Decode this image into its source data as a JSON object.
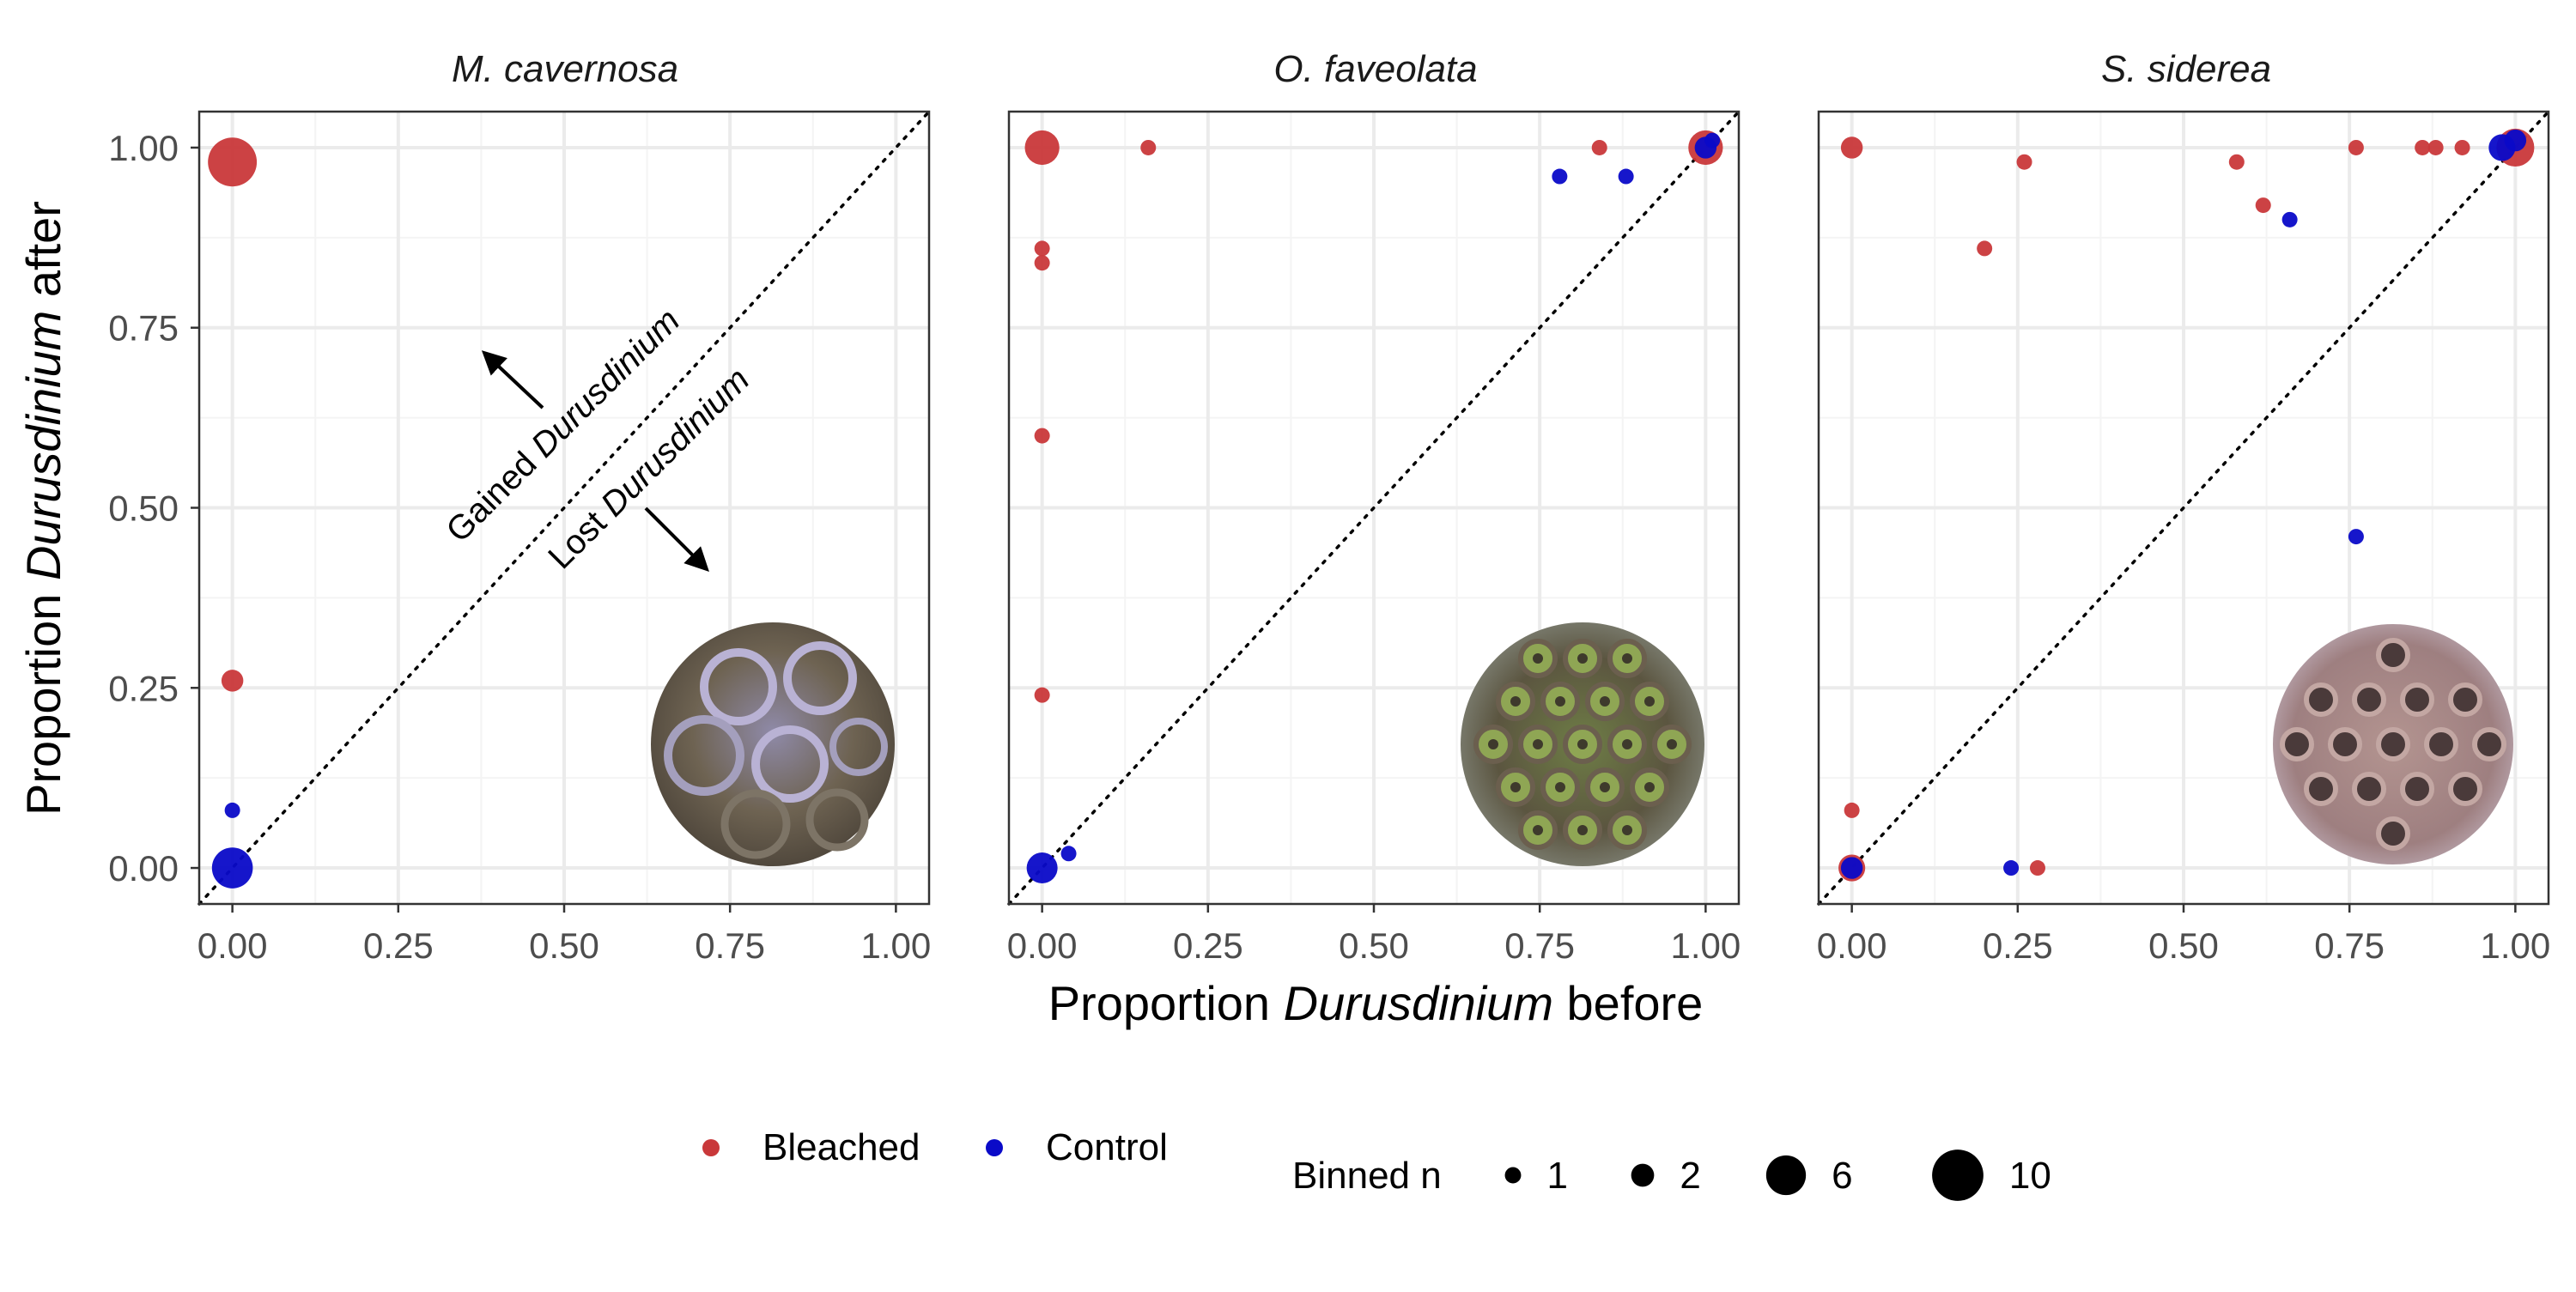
{
  "chart_data": [
    {
      "type": "scatter",
      "title": "M. cavernosa",
      "xlim": [
        -0.05,
        1.05
      ],
      "ylim": [
        -0.05,
        1.05
      ],
      "x_ticks": [
        "0.00",
        "0.25",
        "0.50",
        "0.75",
        "1.00"
      ],
      "y_ticks": [
        "0.00",
        "0.25",
        "0.50",
        "0.75",
        "1.00"
      ],
      "grid": true,
      "reference_line": "y = x (dotted)",
      "annotations": {
        "gained_prefix": "Gained ",
        "gained_italic": "Durusdinium",
        "lost_prefix": "Lost ",
        "lost_italic": "Durusdinium"
      },
      "inset_image": "coral-polyp-photo-m-cavernosa",
      "series": [
        {
          "name": "Bleached",
          "points": [
            {
              "x": 0.0,
              "y": 0.98,
              "n": 10
            },
            {
              "x": 0.0,
              "y": 0.26,
              "n": 2
            }
          ]
        },
        {
          "name": "Control",
          "points": [
            {
              "x": 0.0,
              "y": 0.08,
              "n": 1
            },
            {
              "x": 0.0,
              "y": 0.0,
              "n": 7
            }
          ]
        }
      ]
    },
    {
      "type": "scatter",
      "title": "O. faveolata",
      "xlim": [
        -0.05,
        1.05
      ],
      "ylim": [
        -0.05,
        1.05
      ],
      "x_ticks": [
        "0.00",
        "0.25",
        "0.50",
        "0.75",
        "1.00"
      ],
      "grid": true,
      "reference_line": "y = x (dotted)",
      "inset_image": "coral-polyp-photo-o-faveolata",
      "series": [
        {
          "name": "Bleached",
          "points": [
            {
              "x": 0.0,
              "y": 1.0,
              "n": 5
            },
            {
              "x": 0.16,
              "y": 1.0,
              "n": 1
            },
            {
              "x": 0.0,
              "y": 0.86,
              "n": 1
            },
            {
              "x": 0.0,
              "y": 0.84,
              "n": 1
            },
            {
              "x": 0.0,
              "y": 0.6,
              "n": 1
            },
            {
              "x": 0.0,
              "y": 0.24,
              "n": 1
            },
            {
              "x": 0.84,
              "y": 1.0,
              "n": 1
            },
            {
              "x": 1.0,
              "y": 1.0,
              "n": 5
            }
          ]
        },
        {
          "name": "Control",
          "points": [
            {
              "x": 0.78,
              "y": 0.96,
              "n": 1
            },
            {
              "x": 0.88,
              "y": 0.96,
              "n": 1
            },
            {
              "x": 1.0,
              "y": 1.0,
              "n": 2
            },
            {
              "x": 1.01,
              "y": 1.01,
              "n": 1
            },
            {
              "x": 0.0,
              "y": 0.0,
              "n": 4
            },
            {
              "x": 0.04,
              "y": 0.02,
              "n": 1
            }
          ]
        }
      ]
    },
    {
      "type": "scatter",
      "title": "S. siderea",
      "xlim": [
        -0.05,
        1.05
      ],
      "ylim": [
        -0.05,
        1.05
      ],
      "x_ticks": [
        "0.00",
        "0.25",
        "0.50",
        "0.75",
        "1.00"
      ],
      "grid": true,
      "reference_line": "y = x (dotted)",
      "inset_image": "coral-polyp-photo-s-siderea",
      "series": [
        {
          "name": "Bleached",
          "points": [
            {
              "x": 0.0,
              "y": 1.0,
              "n": 2
            },
            {
              "x": 0.26,
              "y": 0.98,
              "n": 1
            },
            {
              "x": 0.2,
              "y": 0.86,
              "n": 1
            },
            {
              "x": 0.58,
              "y": 0.98,
              "n": 1
            },
            {
              "x": 0.62,
              "y": 0.92,
              "n": 1
            },
            {
              "x": 0.76,
              "y": 1.0,
              "n": 1
            },
            {
              "x": 0.86,
              "y": 1.0,
              "n": 1
            },
            {
              "x": 0.88,
              "y": 1.0,
              "n": 1
            },
            {
              "x": 0.92,
              "y": 1.0,
              "n": 1
            },
            {
              "x": 1.0,
              "y": 1.0,
              "n": 6
            },
            {
              "x": 0.0,
              "y": 0.08,
              "n": 1
            },
            {
              "x": 0.0,
              "y": 0.0,
              "n": 3
            },
            {
              "x": 0.28,
              "y": 0.0,
              "n": 1
            }
          ]
        },
        {
          "name": "Control",
          "points": [
            {
              "x": 0.66,
              "y": 0.9,
              "n": 1
            },
            {
              "x": 0.76,
              "y": 0.46,
              "n": 1
            },
            {
              "x": 0.24,
              "y": 0.0,
              "n": 1
            },
            {
              "x": 0.0,
              "y": 0.0,
              "n": 2
            },
            {
              "x": 0.98,
              "y": 1.0,
              "n": 3
            },
            {
              "x": 1.0,
              "y": 1.01,
              "n": 2
            }
          ]
        }
      ]
    }
  ],
  "axes": {
    "ylabel_prefix": "Proportion ",
    "ylabel_italic": "Durusdinium",
    "ylabel_suffix": " after",
    "xlabel_prefix": "Proportion ",
    "xlabel_italic": "Durusdinium",
    "xlabel_suffix": " before"
  },
  "legend": {
    "groups": [
      {
        "label": "Bleached",
        "color": "#C9383A"
      },
      {
        "label": "Control",
        "color": "#0A0AC8"
      }
    ],
    "size_title": "Binned n",
    "sizes": [
      {
        "label": "1",
        "n": 1
      },
      {
        "label": "2",
        "n": 2
      },
      {
        "label": "6",
        "n": 6
      },
      {
        "label": "10",
        "n": 10
      }
    ],
    "placement": "bottom"
  },
  "colors": {
    "bleached": "#C9383A",
    "control": "#0A0AC8",
    "grid": "#EBEBEB",
    "panel_border": "#333333"
  }
}
